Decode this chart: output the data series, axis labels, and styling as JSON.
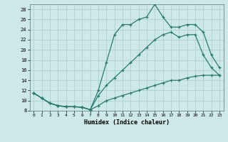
{
  "xlabel": "Humidex (Indice chaleur)",
  "bg_color": "#cce8e8",
  "grid_color": "#aacccc",
  "line_color": "#2a7a70",
  "xlim": [
    -0.5,
    23.5
  ],
  "ylim": [
    8,
    29
  ],
  "xticks": [
    0,
    1,
    2,
    3,
    4,
    5,
    6,
    7,
    8,
    9,
    10,
    11,
    12,
    13,
    14,
    15,
    16,
    17,
    18,
    19,
    20,
    21,
    22,
    23
  ],
  "yticks": [
    8,
    10,
    12,
    14,
    16,
    18,
    20,
    22,
    24,
    26,
    28
  ],
  "line1_x": [
    0,
    1,
    2,
    3,
    4,
    5,
    6,
    7,
    8,
    9,
    10,
    11,
    12,
    13,
    14,
    15,
    16,
    17,
    18,
    19,
    20,
    21,
    22,
    23
  ],
  "line1_y": [
    11.5,
    10.5,
    9.5,
    9.0,
    8.8,
    8.8,
    8.7,
    8.2,
    12.0,
    17.5,
    23.0,
    25.0,
    25.0,
    26.0,
    26.5,
    29.0,
    26.5,
    24.5,
    24.5,
    25.0,
    25.0,
    23.5,
    19.0,
    16.5
  ],
  "line2_x": [
    0,
    1,
    2,
    3,
    4,
    5,
    6,
    7,
    8,
    9,
    10,
    11,
    12,
    13,
    14,
    15,
    16,
    17,
    18,
    19,
    20,
    21,
    22,
    23
  ],
  "line2_y": [
    11.5,
    10.5,
    9.5,
    9.0,
    8.8,
    8.8,
    8.7,
    8.2,
    11.0,
    13.0,
    14.5,
    16.0,
    17.5,
    19.0,
    20.5,
    22.0,
    23.0,
    23.5,
    22.5,
    23.0,
    23.0,
    19.0,
    16.5,
    15.0
  ],
  "line3_x": [
    0,
    1,
    2,
    3,
    4,
    5,
    6,
    7,
    8,
    9,
    10,
    11,
    12,
    13,
    14,
    15,
    16,
    17,
    18,
    19,
    20,
    21,
    22,
    23
  ],
  "line3_y": [
    11.5,
    10.5,
    9.5,
    9.0,
    8.8,
    8.8,
    8.7,
    8.2,
    9.0,
    10.0,
    10.5,
    11.0,
    11.5,
    12.0,
    12.5,
    13.0,
    13.5,
    14.0,
    14.0,
    14.5,
    14.8,
    15.0,
    15.0,
    15.0
  ]
}
